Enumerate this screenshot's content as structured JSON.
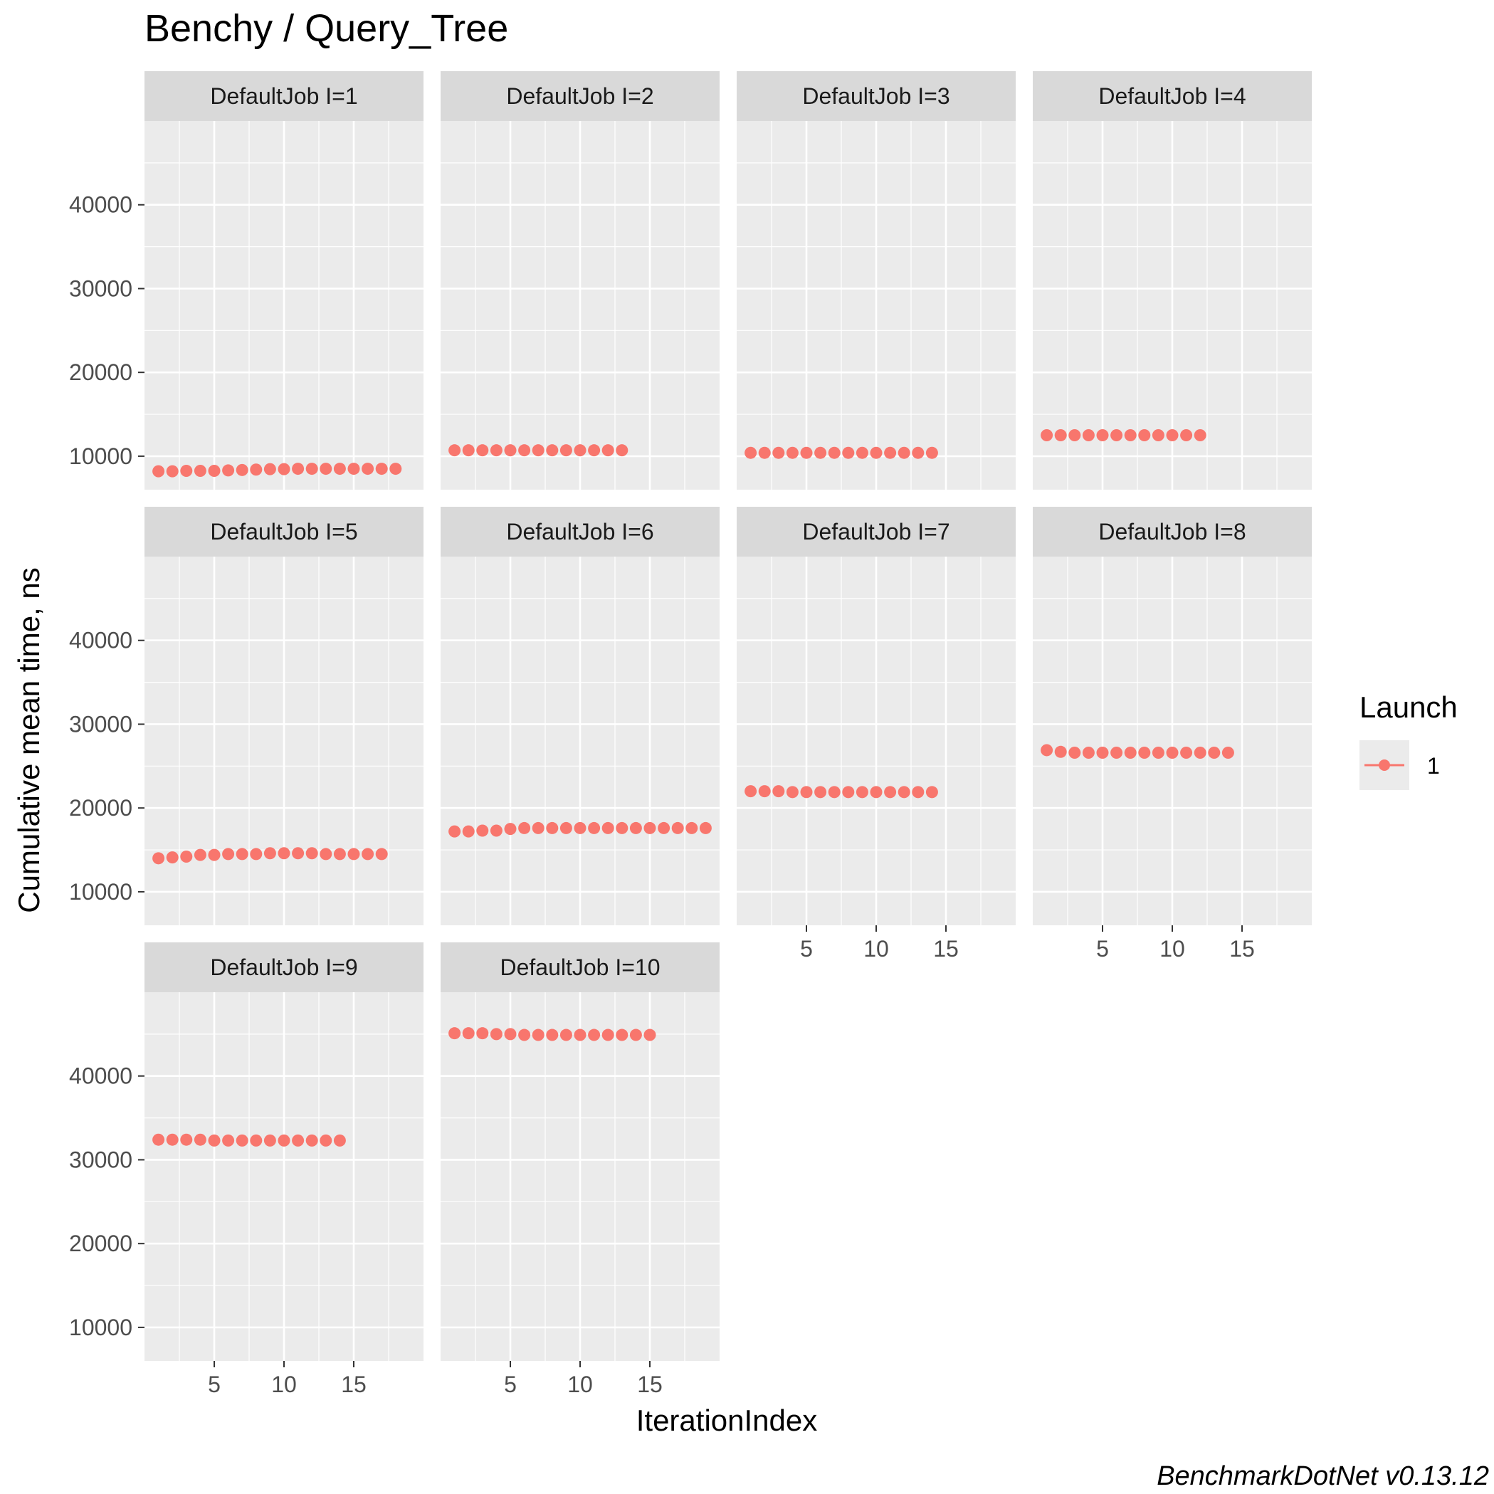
{
  "chart_data": {
    "type": "scatter",
    "title": "Benchy / Query_Tree",
    "xlabel": "IterationIndex",
    "ylabel": "Cumulative mean time, ns",
    "caption": "BenchmarkDotNet v0.13.12",
    "xlim": [
      0,
      20
    ],
    "ylim": [
      6000,
      50000
    ],
    "x_ticks": [
      5,
      10,
      15
    ],
    "x_tick_labels": [
      "5",
      "10",
      "15"
    ],
    "y_ticks": [
      10000,
      20000,
      30000,
      40000
    ],
    "y_tick_labels": [
      "10000",
      "20000",
      "30000",
      "40000"
    ],
    "grid": true,
    "legend": {
      "title": "Launch",
      "position": "right",
      "entries": [
        {
          "label": "1",
          "color": "#F8766D"
        }
      ]
    },
    "point_color": "#F8766D",
    "panels": [
      {
        "label": "DefaultJob I=1",
        "x": [
          1,
          2,
          3,
          4,
          5,
          6,
          7,
          8,
          9,
          10,
          11,
          12,
          13,
          14,
          15,
          16,
          17,
          18
        ],
        "y": [
          8200,
          8200,
          8250,
          8250,
          8250,
          8300,
          8350,
          8400,
          8450,
          8450,
          8500,
          8500,
          8500,
          8500,
          8500,
          8500,
          8500,
          8500
        ]
      },
      {
        "label": "DefaultJob I=2",
        "x": [
          1,
          2,
          3,
          4,
          5,
          6,
          7,
          8,
          9,
          10,
          11,
          12,
          13
        ],
        "y": [
          10700,
          10700,
          10700,
          10700,
          10700,
          10700,
          10700,
          10700,
          10700,
          10700,
          10700,
          10700,
          10700
        ]
      },
      {
        "label": "DefaultJob I=3",
        "x": [
          1,
          2,
          3,
          4,
          5,
          6,
          7,
          8,
          9,
          10,
          11,
          12,
          13,
          14
        ],
        "y": [
          10400,
          10400,
          10400,
          10400,
          10400,
          10400,
          10400,
          10400,
          10400,
          10400,
          10400,
          10400,
          10400,
          10400
        ]
      },
      {
        "label": "DefaultJob I=4",
        "x": [
          1,
          2,
          3,
          4,
          5,
          6,
          7,
          8,
          9,
          10,
          11,
          12
        ],
        "y": [
          12500,
          12500,
          12500,
          12500,
          12500,
          12500,
          12500,
          12500,
          12500,
          12500,
          12500,
          12500
        ]
      },
      {
        "label": "DefaultJob I=5",
        "x": [
          1,
          2,
          3,
          4,
          5,
          6,
          7,
          8,
          9,
          10,
          11,
          12,
          13,
          14,
          15,
          16,
          17
        ],
        "y": [
          14000,
          14100,
          14200,
          14400,
          14400,
          14500,
          14500,
          14500,
          14600,
          14600,
          14600,
          14600,
          14500,
          14500,
          14500,
          14500,
          14500
        ]
      },
      {
        "label": "DefaultJob I=6",
        "x": [
          1,
          2,
          3,
          4,
          5,
          6,
          7,
          8,
          9,
          10,
          11,
          12,
          13,
          14,
          15,
          16,
          17,
          18,
          19
        ],
        "y": [
          17200,
          17200,
          17300,
          17300,
          17500,
          17600,
          17600,
          17600,
          17600,
          17600,
          17600,
          17600,
          17600,
          17600,
          17600,
          17600,
          17600,
          17600,
          17600
        ]
      },
      {
        "label": "DefaultJob I=7",
        "x": [
          1,
          2,
          3,
          4,
          5,
          6,
          7,
          8,
          9,
          10,
          11,
          12,
          13,
          14
        ],
        "y": [
          22000,
          22000,
          22000,
          21900,
          21900,
          21900,
          21900,
          21900,
          21900,
          21900,
          21900,
          21900,
          21900,
          21900
        ]
      },
      {
        "label": "DefaultJob I=8",
        "x": [
          1,
          2,
          3,
          4,
          5,
          6,
          7,
          8,
          9,
          10,
          11,
          12,
          13,
          14
        ],
        "y": [
          26900,
          26700,
          26600,
          26600,
          26600,
          26600,
          26600,
          26600,
          26600,
          26600,
          26600,
          26600,
          26600,
          26600
        ]
      },
      {
        "label": "DefaultJob I=9",
        "x": [
          1,
          2,
          3,
          4,
          5,
          6,
          7,
          8,
          9,
          10,
          11,
          12,
          13,
          14
        ],
        "y": [
          32400,
          32400,
          32400,
          32400,
          32300,
          32300,
          32300,
          32300,
          32300,
          32300,
          32300,
          32300,
          32300,
          32300
        ]
      },
      {
        "label": "DefaultJob I=10",
        "x": [
          1,
          2,
          3,
          4,
          5,
          6,
          7,
          8,
          9,
          10,
          11,
          12,
          13,
          14,
          15
        ],
        "y": [
          45100,
          45100,
          45100,
          45000,
          45000,
          44900,
          44900,
          44900,
          44900,
          44900,
          44900,
          44900,
          44900,
          44900,
          44900
        ]
      }
    ]
  }
}
